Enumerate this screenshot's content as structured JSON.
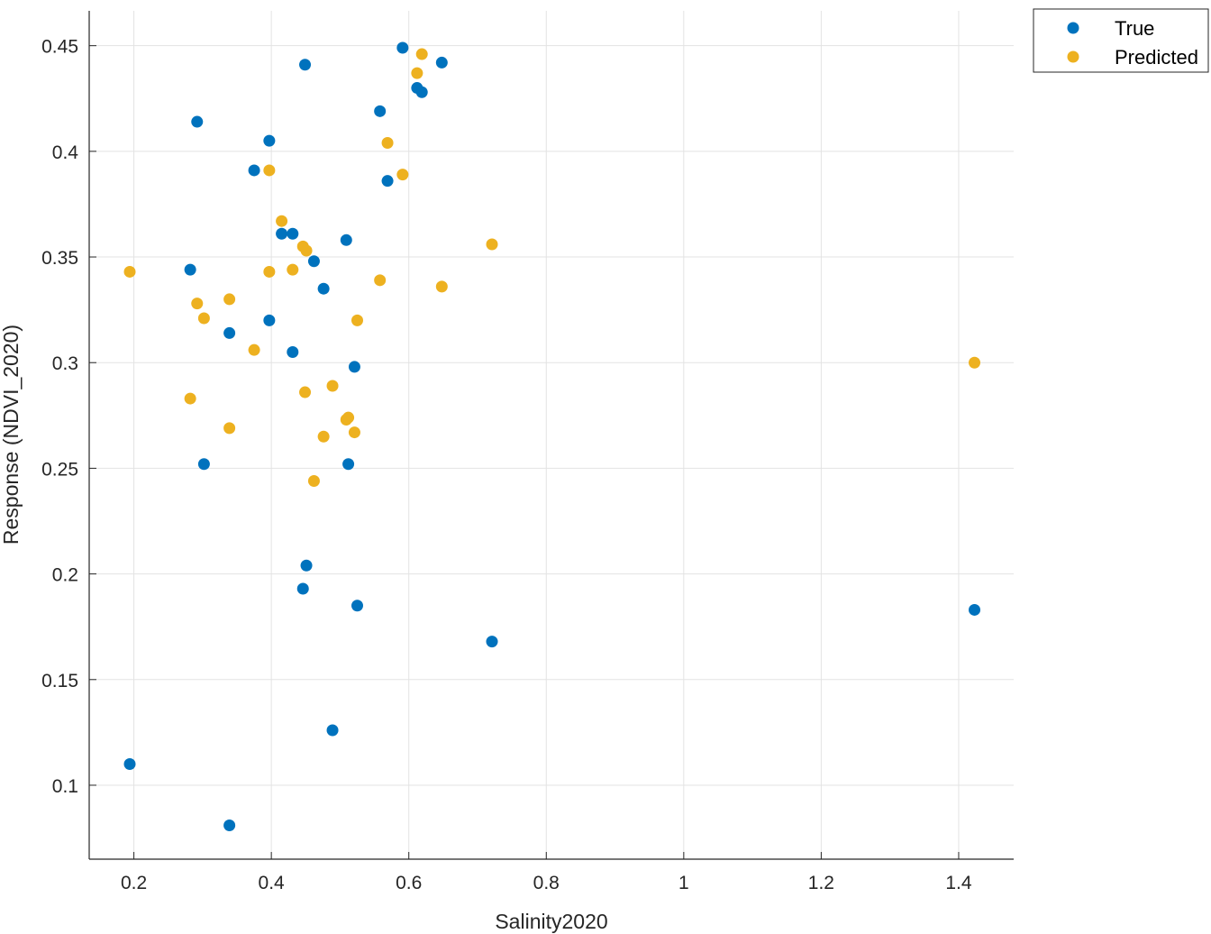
{
  "chart_data": {
    "type": "scatter",
    "xlabel": "Salinity2020",
    "ylabel": "Response (NDVI_2020)",
    "xlim": [
      0.135,
      1.48
    ],
    "ylim": [
      0.065,
      0.4665
    ],
    "xticks": [
      0.2,
      0.4,
      0.6,
      0.8,
      1,
      1.2,
      1.4
    ],
    "xtick_labels": [
      "0.2",
      "0.4",
      "0.6",
      "0.8",
      "1",
      "1.2",
      "1.4"
    ],
    "yticks": [
      0.1,
      0.15,
      0.2,
      0.25,
      0.3,
      0.35,
      0.4,
      0.45
    ],
    "ytick_labels": [
      "0.1",
      "0.15",
      "0.2",
      "0.25",
      "0.3",
      "0.35",
      "0.4",
      "0.45"
    ],
    "grid": true,
    "legend_position": "top-right",
    "series": [
      {
        "name": "True",
        "color": "#0072BD",
        "x": [
          0.194,
          0.282,
          0.292,
          0.302,
          0.339,
          0.339,
          0.375,
          0.397,
          0.397,
          0.415,
          0.431,
          0.431,
          0.446,
          0.449,
          0.451,
          0.462,
          0.476,
          0.489,
          0.509,
          0.512,
          0.521,
          0.525,
          0.558,
          0.569,
          0.591,
          0.612,
          0.619,
          0.648,
          0.721,
          1.423
        ],
        "y": [
          0.11,
          0.344,
          0.414,
          0.252,
          0.314,
          0.081,
          0.391,
          0.405,
          0.32,
          0.361,
          0.361,
          0.305,
          0.193,
          0.441,
          0.204,
          0.348,
          0.335,
          0.126,
          0.358,
          0.252,
          0.298,
          0.185,
          0.419,
          0.386,
          0.449,
          0.43,
          0.428,
          0.442,
          0.168,
          0.183
        ]
      },
      {
        "name": "Predicted",
        "color": "#EDB120",
        "x": [
          0.194,
          0.282,
          0.292,
          0.302,
          0.339,
          0.339,
          0.375,
          0.397,
          0.397,
          0.415,
          0.431,
          0.446,
          0.449,
          0.451,
          0.462,
          0.476,
          0.489,
          0.509,
          0.512,
          0.521,
          0.525,
          0.558,
          0.569,
          0.591,
          0.612,
          0.619,
          0.648,
          0.721,
          1.423
        ],
        "y": [
          0.343,
          0.283,
          0.328,
          0.321,
          0.33,
          0.269,
          0.306,
          0.391,
          0.343,
          0.367,
          0.344,
          0.355,
          0.286,
          0.353,
          0.244,
          0.265,
          0.289,
          0.273,
          0.274,
          0.267,
          0.32,
          0.339,
          0.404,
          0.389,
          0.437,
          0.446,
          0.336,
          0.356,
          0.3
        ]
      }
    ]
  }
}
